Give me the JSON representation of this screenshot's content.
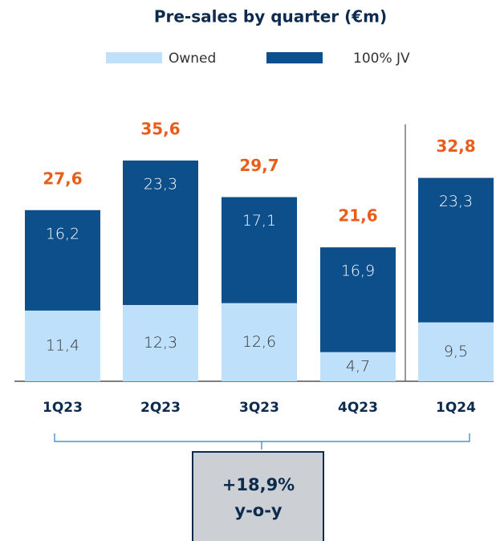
{
  "chart_data": {
    "type": "stacked_bar",
    "title": "Pre-sales by quarter (€m)",
    "categories": [
      "1Q23",
      "2Q23",
      "3Q23",
      "4Q23",
      "1Q24"
    ],
    "series": [
      {
        "name": "Owned",
        "color": "#bfe0fb",
        "values": [
          11.4,
          12.3,
          12.6,
          4.7,
          9.5
        ],
        "value_labels": [
          "11,4",
          "12,3",
          "12,6",
          "4,7",
          "9,5"
        ]
      },
      {
        "name": "100% JV",
        "color": "#0d4f8b",
        "values": [
          16.2,
          23.3,
          17.1,
          16.9,
          23.3
        ],
        "value_labels": [
          "16,2",
          "23,3",
          "17,1",
          "16,9",
          "23,3"
        ]
      }
    ],
    "totals": [
      27.6,
      35.6,
      29.7,
      21.6,
      32.8
    ],
    "total_labels": [
      "27,6",
      "35,6",
      "29,7",
      "21,6",
      "32,8"
    ],
    "ylim": [
      0,
      40
    ],
    "annotation": [
      "+18,9%",
      "y-o-y"
    ]
  }
}
